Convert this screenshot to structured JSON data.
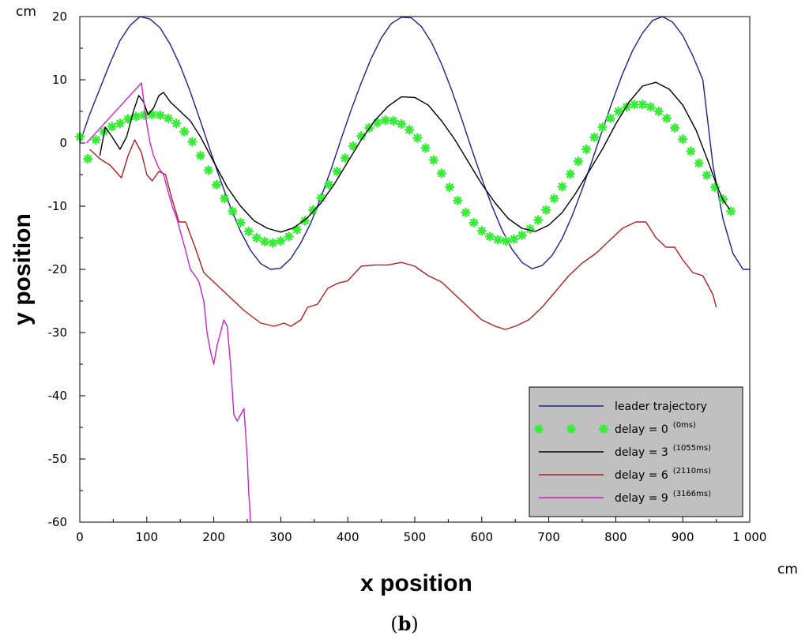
{
  "caption": {
    "open": "(",
    "letter": "b",
    "close": ")"
  },
  "chart_data": {
    "type": "line",
    "xlabel": "x position",
    "ylabel": "y position",
    "x_unit": "cm",
    "y_unit": "cm",
    "xlim": [
      0,
      1000
    ],
    "ylim": [
      -60,
      20
    ],
    "x_ticks": [
      0,
      100,
      200,
      300,
      400,
      500,
      600,
      700,
      800,
      900,
      1000
    ],
    "x_tick_labels": [
      "0",
      "100",
      "200",
      "300",
      "400",
      "500",
      "600",
      "700",
      "800",
      "900",
      "1 000"
    ],
    "y_ticks": [
      -60,
      -50,
      -40,
      -30,
      -20,
      -10,
      0,
      10,
      20
    ],
    "y_tick_labels": [
      "-60",
      "-50",
      "-40",
      "-30",
      "-20",
      "-10",
      "0",
      "10",
      "20"
    ],
    "grid": false,
    "legend_position": "bottom-right",
    "series": [
      {
        "name": "leader trajectory",
        "color": "#1f1f8f",
        "style": "line",
        "x": [
          0,
          15,
          30,
          45,
          60,
          75,
          90,
          105,
          120,
          135,
          150,
          165,
          180,
          195,
          210,
          225,
          240,
          255,
          270,
          285,
          300,
          315,
          330,
          345,
          360,
          375,
          390,
          405,
          420,
          435,
          450,
          465,
          480,
          495,
          510,
          525,
          540,
          555,
          570,
          585,
          600,
          615,
          630,
          645,
          660,
          675,
          690,
          705,
          720,
          735,
          750,
          765,
          780,
          795,
          810,
          825,
          840,
          855,
          870,
          885,
          900,
          915,
          930,
          945,
          960,
          975,
          990,
          1000
        ],
        "y": [
          0,
          4.6,
          8.6,
          12.6,
          16.2,
          18.6,
          20,
          19.6,
          18.2,
          15.6,
          12.2,
          8.1,
          3.5,
          -1.3,
          -5.9,
          -10.2,
          -14,
          -17,
          -19.1,
          -20,
          -19.8,
          -18.3,
          -15.8,
          -12.6,
          -8.6,
          -4.2,
          0.6,
          5.2,
          9.5,
          13.4,
          16.6,
          18.9,
          19.9,
          19.8,
          18.4,
          15.9,
          12.5,
          8.4,
          3.8,
          -1,
          -5.6,
          -9.9,
          -13.7,
          -16.8,
          -18.9,
          -19.9,
          -19.4,
          -17.8,
          -15.1,
          -11.5,
          -7.3,
          -2.7,
          2,
          6.6,
          10.9,
          14.6,
          17.4,
          19.4,
          20,
          19.1,
          17,
          13.8,
          10,
          -3.5,
          -12,
          -17.5,
          -20,
          -20
        ]
      },
      {
        "name": "delay = 0",
        "name_note": "(0ms)",
        "color": "#33ee33",
        "style": "markers",
        "x": [
          0,
          12,
          24,
          36,
          48,
          60,
          72,
          84,
          96,
          108,
          120,
          132,
          144,
          156,
          168,
          180,
          192,
          204,
          216,
          228,
          240,
          252,
          264,
          276,
          288,
          300,
          312,
          324,
          336,
          348,
          360,
          372,
          384,
          396,
          408,
          420,
          432,
          444,
          456,
          468,
          480,
          492,
          504,
          516,
          528,
          540,
          552,
          564,
          576,
          588,
          600,
          612,
          624,
          636,
          648,
          660,
          672,
          684,
          696,
          708,
          720,
          732,
          744,
          756,
          768,
          780,
          792,
          804,
          816,
          828,
          840,
          852,
          864,
          876,
          888,
          900,
          912,
          924,
          936,
          948,
          960,
          972
        ],
        "y": [
          1,
          -2.5,
          0.5,
          1.8,
          2.6,
          3.1,
          3.8,
          4.2,
          4.4,
          4.5,
          4.4,
          3.9,
          3.1,
          1.8,
          0.2,
          -2,
          -4.3,
          -6.6,
          -8.8,
          -10.8,
          -12.6,
          -14,
          -15,
          -15.6,
          -15.8,
          -15.5,
          -14.8,
          -13.7,
          -12.3,
          -10.6,
          -8.7,
          -6.6,
          -4.5,
          -2.4,
          -0.5,
          1.1,
          2.4,
          3.2,
          3.6,
          3.5,
          3,
          2.1,
          0.8,
          -0.8,
          -2.7,
          -4.8,
          -7,
          -9.1,
          -11,
          -12.6,
          -13.9,
          -14.8,
          -15.3,
          -15.5,
          -15.2,
          -14.6,
          -13.6,
          -12.2,
          -10.6,
          -8.8,
          -6.9,
          -4.9,
          -2.9,
          -1,
          0.9,
          2.5,
          3.9,
          5,
          5.7,
          6.1,
          6.1,
          5.7,
          5,
          3.9,
          2.4,
          0.6,
          -1.3,
          -3.2,
          -5.1,
          -7,
          -8.9,
          -10.8
        ]
      },
      {
        "name": "delay = 3",
        "name_note": "(1055ms)",
        "color": "#000000",
        "style": "line",
        "x": [
          30,
          38,
          48,
          60,
          70,
          80,
          88,
          95,
          102,
          110,
          118,
          125,
          135,
          150,
          165,
          180,
          200,
          220,
          240,
          260,
          280,
          300,
          320,
          340,
          360,
          380,
          400,
          420,
          440,
          460,
          480,
          500,
          520,
          540,
          560,
          580,
          600,
          620,
          640,
          660,
          680,
          700,
          720,
          740,
          760,
          780,
          800,
          820,
          840,
          860,
          880,
          900,
          920,
          940,
          950,
          960,
          970
        ],
        "y": [
          -2,
          2.5,
          1,
          -1,
          1,
          5,
          7.5,
          6.5,
          4.5,
          5.5,
          7.5,
          8,
          6.5,
          5,
          3.5,
          1,
          -3,
          -7,
          -10,
          -12.3,
          -13.5,
          -14.1,
          -13.4,
          -11.8,
          -9.5,
          -6.5,
          -3,
          0.5,
          3.5,
          5.8,
          7.3,
          7.2,
          6,
          3.5,
          0.5,
          -3,
          -6.5,
          -9.5,
          -12,
          -13.5,
          -14,
          -13,
          -11,
          -8,
          -4.5,
          -1,
          3,
          6.5,
          9,
          9.6,
          8.5,
          6,
          2,
          -3.5,
          -6.5,
          -9,
          -10.5
        ]
      },
      {
        "name": "delay = 6",
        "name_note": "(2110ms)",
        "color": "#b02020",
        "style": "line",
        "x": [
          15,
          30,
          45,
          62,
          72,
          82,
          92,
          100,
          108,
          118,
          128,
          138,
          148,
          158,
          172,
          185,
          200,
          220,
          245,
          270,
          290,
          305,
          315,
          330,
          340,
          355,
          370,
          385,
          400,
          420,
          440,
          460,
          480,
          500,
          520,
          540,
          560,
          580,
          600,
          620,
          635,
          650,
          670,
          690,
          710,
          730,
          750,
          770,
          790,
          810,
          830,
          845,
          860,
          875,
          888,
          900,
          915,
          930,
          945,
          950
        ],
        "y": [
          -1,
          -2.5,
          -3.5,
          -5.5,
          -2,
          0.5,
          -1.5,
          -5,
          -6,
          -4.5,
          -5,
          -9,
          -12.5,
          -12.5,
          -16.5,
          -20.5,
          -22,
          -24,
          -26.5,
          -28.5,
          -29,
          -28.5,
          -29,
          -28,
          -26,
          -25.5,
          -23,
          -22.2,
          -21.8,
          -19.5,
          -19.3,
          -19.3,
          -18.9,
          -19.5,
          -21,
          -22,
          -24,
          -26,
          -28,
          -29,
          -29.5,
          -29,
          -28,
          -26,
          -23.5,
          -21,
          -19,
          -17.5,
          -15.5,
          -13.5,
          -12.5,
          -12.5,
          -15,
          -16.5,
          -16.5,
          -18.5,
          -20.5,
          -21,
          -24,
          -26
        ]
      },
      {
        "name": "delay = 9",
        "name_note": "(3166ms)",
        "color": "#cc22cc",
        "style": "line",
        "x": [
          10,
          92,
          95,
          100,
          105,
          110,
          118,
          125,
          130,
          138,
          145,
          150,
          158,
          165,
          172,
          178,
          185,
          190,
          195,
          200,
          205,
          210,
          215,
          220,
          225,
          230,
          235,
          240,
          245,
          250,
          252,
          255
        ],
        "y": [
          0,
          9.5,
          7,
          3,
          0,
          -2,
          -4,
          -5,
          -7,
          -10,
          -12,
          -14,
          -17,
          -20,
          -21,
          -22,
          -25,
          -30,
          -33,
          -35,
          -32,
          -30,
          -28,
          -29,
          -35,
          -43,
          -44,
          -43,
          -42,
          -50,
          -55,
          -60
        ]
      }
    ]
  }
}
